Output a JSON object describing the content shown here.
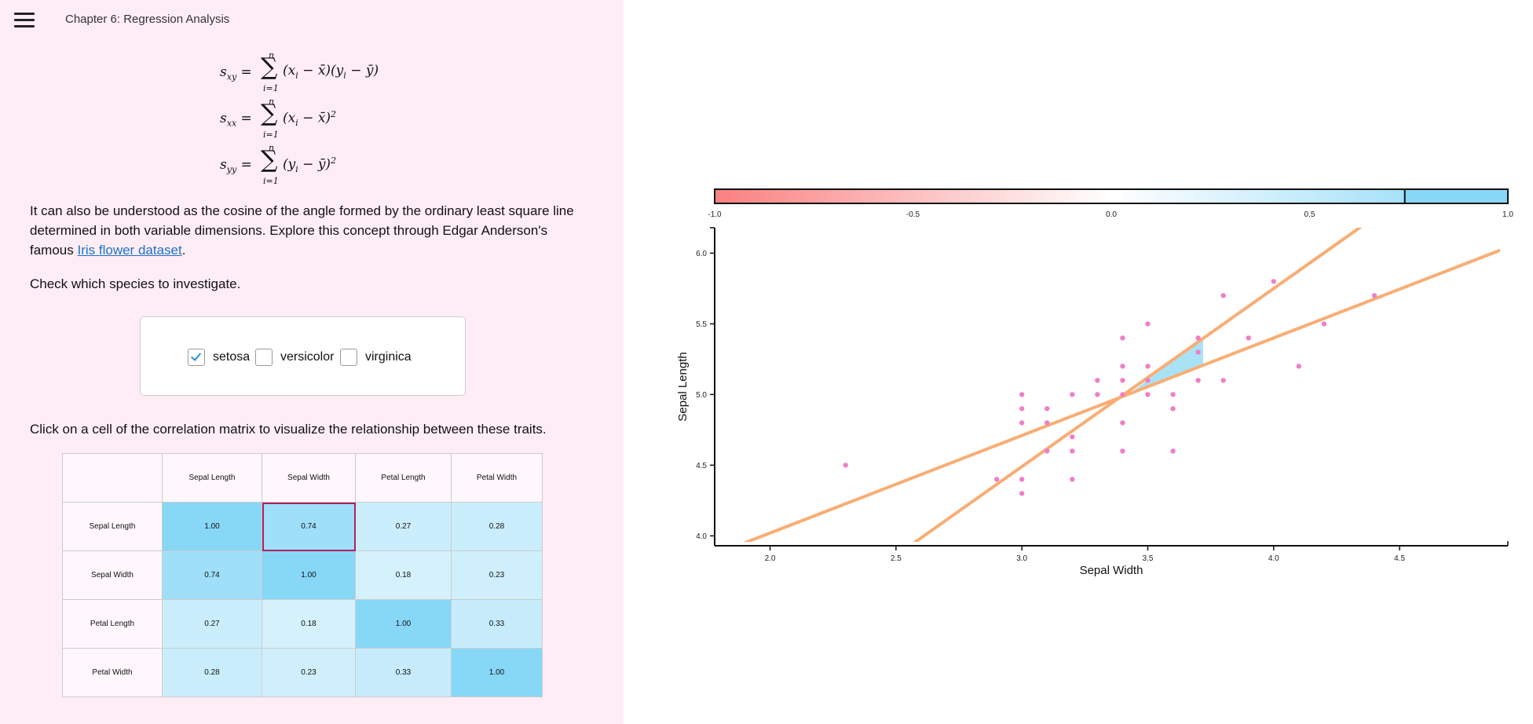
{
  "header": {
    "title": "Chapter 6: Regression Analysis"
  },
  "equations": [
    {
      "lhs": "s",
      "lhs_sub": "xy",
      "rhs": "(x_i − x̄)(y_i − ȳ)",
      "upper": "n",
      "lower": "i=1"
    },
    {
      "lhs": "s",
      "lhs_sub": "xx",
      "rhs": "(x_i − x̄)^2",
      "upper": "n",
      "lower": "i=1"
    },
    {
      "lhs": "s",
      "lhs_sub": "yy",
      "rhs": "(y_i − ȳ)^2",
      "upper": "n",
      "lower": "i=1"
    }
  ],
  "text": {
    "para1_a": "It can also be understood as the cosine of the angle formed by the ordinary least square line determined in both variable dimensions. Explore this concept through Edgar Anderson's famous ",
    "link": "Iris flower dataset",
    "para1_b": ".",
    "para2": "Check which species to investigate.",
    "para3": "Click on a cell of the correlation matrix to visualize the relationship between these traits."
  },
  "species": [
    {
      "label": "setosa",
      "checked": true
    },
    {
      "label": "versicolor",
      "checked": false
    },
    {
      "label": "virginica",
      "checked": false
    }
  ],
  "matrix": {
    "headers": [
      "Sepal Length",
      "Sepal Width",
      "Petal Length",
      "Petal Width"
    ],
    "rows": [
      {
        "label": "Sepal Length",
        "values": [
          "1.00",
          "0.74",
          "0.27",
          "0.28"
        ]
      },
      {
        "label": "Sepal Width",
        "values": [
          "0.74",
          "1.00",
          "0.18",
          "0.23"
        ]
      },
      {
        "label": "Petal Length",
        "values": [
          "0.27",
          "0.18",
          "1.00",
          "0.33"
        ]
      },
      {
        "label": "Petal Width",
        "values": [
          "0.28",
          "0.23",
          "0.33",
          "1.00"
        ]
      }
    ],
    "selected": [
      0,
      1
    ]
  },
  "colorbar": {
    "ticks": [
      "-1.0",
      "-0.5",
      "0.0",
      "0.5",
      "1.0"
    ],
    "marker_value": 0.74,
    "negative_color": "#fa8080",
    "positive_color": "#87d7f7"
  },
  "chart_data": {
    "type": "scatter",
    "xlabel": "Sepal Width",
    "ylabel": "Sepal Length",
    "xlim": [
      1.78,
      4.93
    ],
    "ylim": [
      3.93,
      6.18
    ],
    "x_ticks": [
      "2.0",
      "2.5",
      "3.0",
      "3.5",
      "4.0",
      "4.5"
    ],
    "y_ticks": [
      "4.0",
      "4.5",
      "5.0",
      "5.5",
      "6.0"
    ],
    "point_color": "#f07ec8",
    "line_color": "#f9ad74",
    "wedge_color": "#a0dff5",
    "points": [
      [
        2.3,
        4.5
      ],
      [
        2.9,
        4.4
      ],
      [
        3.0,
        4.4
      ],
      [
        3.0,
        4.3
      ],
      [
        3.0,
        4.8
      ],
      [
        3.0,
        4.9
      ],
      [
        3.0,
        5.0
      ],
      [
        3.1,
        4.6
      ],
      [
        3.1,
        4.8
      ],
      [
        3.1,
        4.9
      ],
      [
        3.2,
        4.4
      ],
      [
        3.2,
        4.6
      ],
      [
        3.2,
        4.7
      ],
      [
        3.2,
        5.0
      ],
      [
        3.3,
        5.0
      ],
      [
        3.3,
        5.1
      ],
      [
        3.4,
        4.6
      ],
      [
        3.4,
        4.8
      ],
      [
        3.4,
        5.0
      ],
      [
        3.4,
        5.1
      ],
      [
        3.4,
        5.2
      ],
      [
        3.4,
        5.4
      ],
      [
        3.5,
        5.0
      ],
      [
        3.5,
        5.1
      ],
      [
        3.5,
        5.2
      ],
      [
        3.5,
        5.5
      ],
      [
        3.6,
        4.6
      ],
      [
        3.6,
        4.9
      ],
      [
        3.6,
        5.0
      ],
      [
        3.7,
        5.1
      ],
      [
        3.7,
        5.3
      ],
      [
        3.7,
        5.4
      ],
      [
        3.8,
        5.1
      ],
      [
        3.8,
        5.7
      ],
      [
        3.9,
        5.4
      ],
      [
        4.0,
        5.8
      ],
      [
        4.1,
        5.2
      ],
      [
        4.2,
        5.5
      ],
      [
        4.4,
        5.7
      ]
    ],
    "regression_lines": [
      {
        "slope": 0.69,
        "intercept": 2.64
      },
      {
        "slope": 1.26,
        "intercept": 0.71
      }
    ],
    "mean": [
      3.43,
      5.01
    ]
  }
}
